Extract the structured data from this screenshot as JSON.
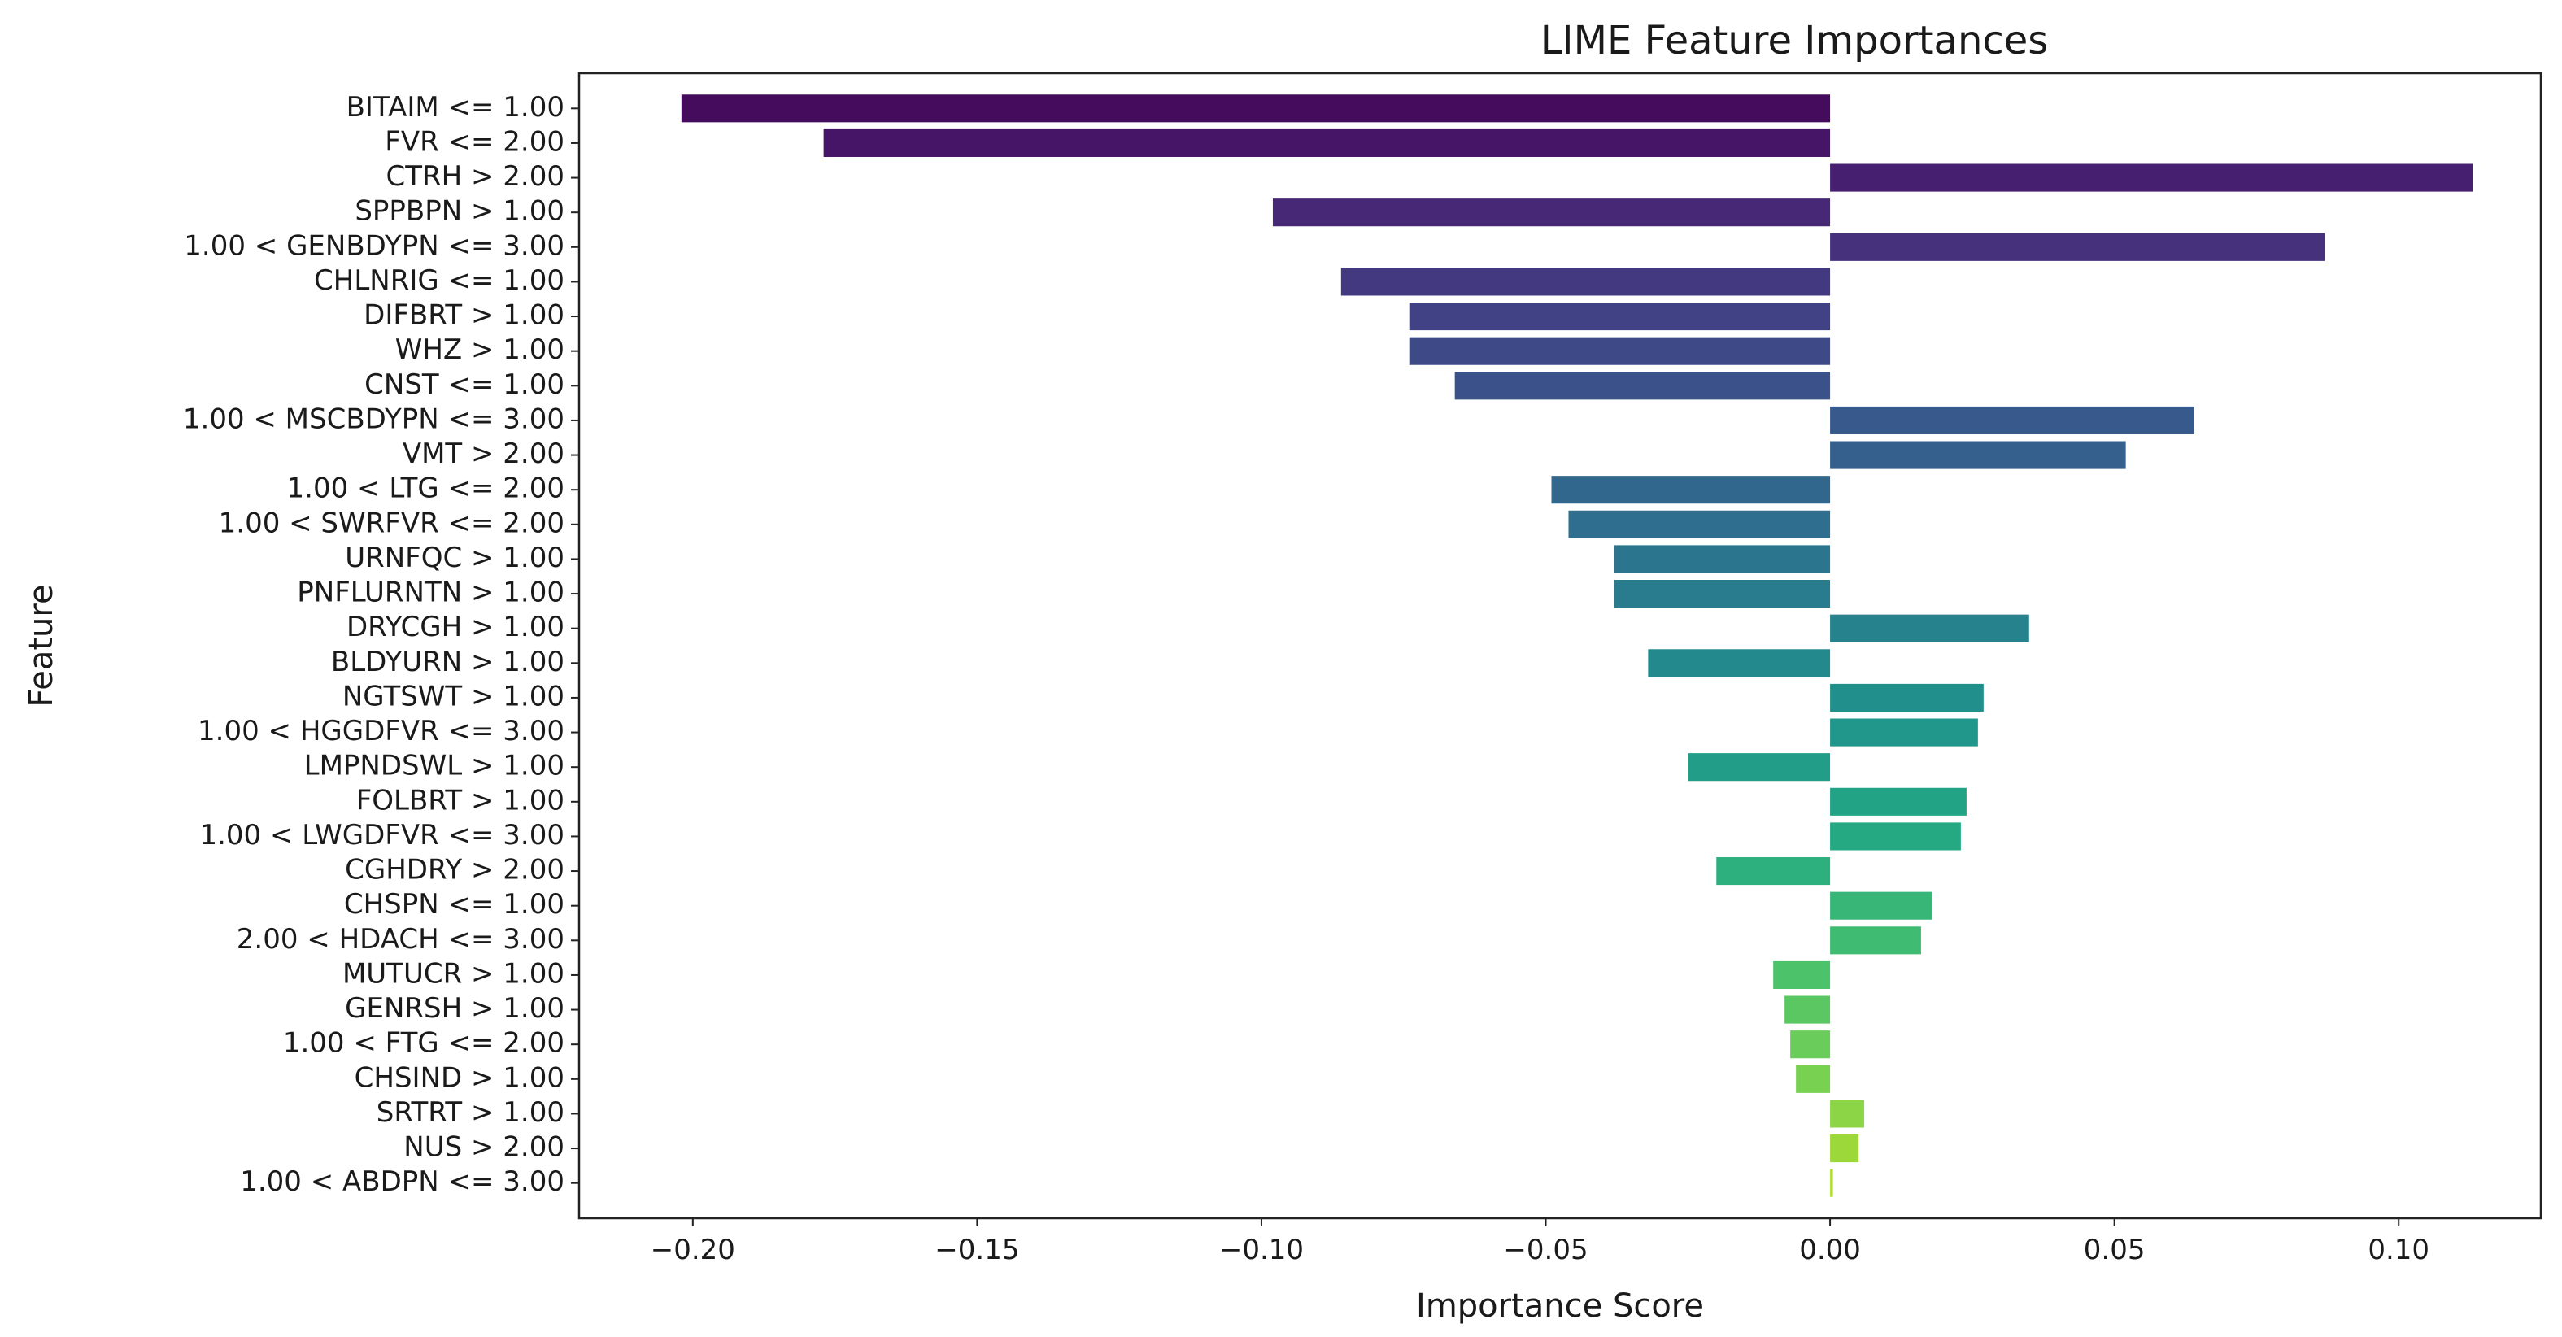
{
  "chart_data": {
    "type": "bar",
    "orientation": "horizontal",
    "title": "LIME Feature Importances",
    "xlabel": "Importance Score",
    "ylabel": "Feature",
    "xlim": [
      -0.22,
      0.125
    ],
    "xticks": [
      -0.2,
      -0.15,
      -0.1,
      -0.05,
      0.0,
      0.05,
      0.1
    ],
    "xtick_labels": [
      "−0.20",
      "−0.15",
      "−0.10",
      "−0.05",
      "0.00",
      "0.05",
      "0.10"
    ],
    "grid": false,
    "colormap": "viridis",
    "categories": [
      "BITAIM <= 1.00",
      "FVR <= 2.00",
      "CTRH > 2.00",
      "SPPBPN > 1.00",
      "1.00 < GENBDYPN <= 3.00",
      "CHLNRIG <= 1.00",
      "DIFBRT > 1.00",
      "WHZ > 1.00",
      "CNST <= 1.00",
      "1.00 < MSCBDYPN <= 3.00",
      "VMT > 2.00",
      "1.00 < LTG <= 2.00",
      "1.00 < SWRFVR <= 2.00",
      "URNFQC > 1.00",
      "PNFLURNTN > 1.00",
      "DRYCGH > 1.00",
      "BLDYURN > 1.00",
      "NGTSWT > 1.00",
      "1.00 < HGGDFVR <= 3.00",
      "LMPNDSWL > 1.00",
      "FOLBRT > 1.00",
      "1.00 < LWGDFVR <= 3.00",
      "CGHDRY > 2.00",
      "CHSPN <= 1.00",
      "2.00 < HDACH <= 3.00",
      "MUTUCR > 1.00",
      "GENRSH > 1.00",
      "1.00 < FTG <= 2.00",
      "CHSIND > 1.00",
      "SRTRT > 1.00",
      "NUS > 2.00",
      "1.00 < ABDPN <= 3.00"
    ],
    "values": [
      -0.202,
      -0.177,
      0.113,
      -0.098,
      0.087,
      -0.086,
      -0.074,
      -0.074,
      -0.066,
      0.064,
      0.052,
      -0.049,
      -0.046,
      -0.038,
      -0.038,
      0.035,
      -0.032,
      0.027,
      0.026,
      -0.025,
      0.024,
      0.023,
      -0.02,
      0.018,
      0.016,
      -0.01,
      -0.008,
      -0.007,
      -0.006,
      0.006,
      0.005,
      0.0005
    ]
  }
}
